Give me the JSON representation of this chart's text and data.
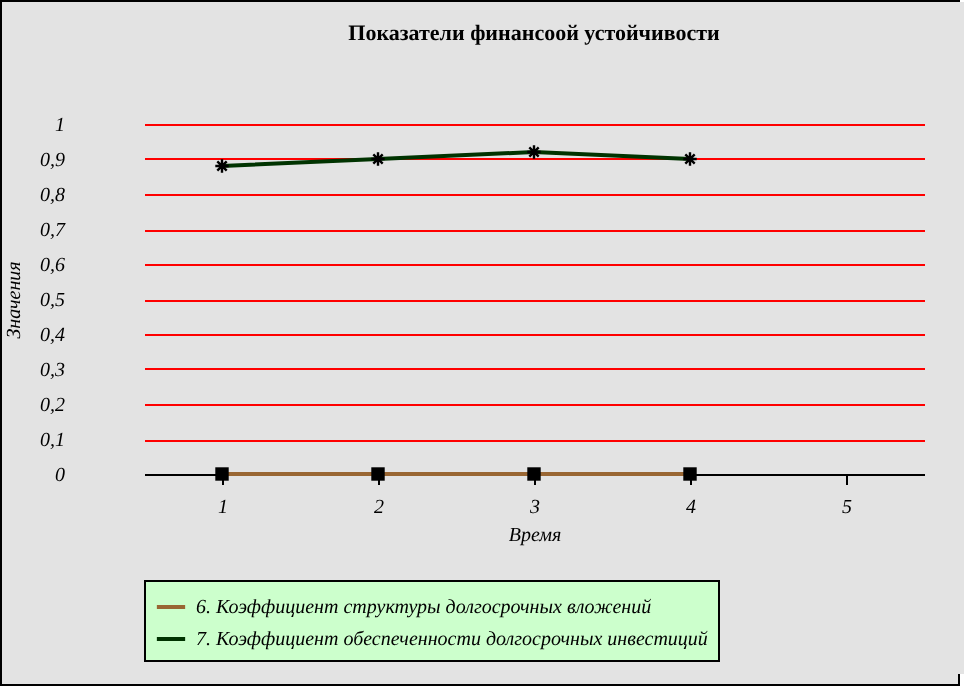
{
  "chart_data": {
    "type": "line",
    "title": "Показатели финансоой устойчивости",
    "xlabel": "Время",
    "ylabel": "Значения",
    "categories": [
      "1",
      "2",
      "3",
      "4",
      "5"
    ],
    "series": [
      {
        "name": "6. Коэффициент структуры долгосрочных вложений",
        "color": "#996633",
        "marker": "square",
        "values": [
          0,
          0,
          0,
          0,
          null
        ]
      },
      {
        "name": "7. Коэффициент обеспеченности долгосрочных инвестиций",
        "color": "#003300",
        "marker": "cross",
        "values": [
          0.88,
          0.9,
          0.92,
          0.9,
          null
        ]
      }
    ],
    "ylim": [
      0,
      1
    ],
    "yticks": [
      0,
      {
        "value": 0.1,
        "label": "0,1"
      },
      {
        "value": 0.2,
        "label": "0,2"
      },
      {
        "value": 0.3,
        "label": "0,3"
      },
      {
        "value": 0.4,
        "label": "0,4"
      },
      {
        "value": 0.5,
        "label": "0,5"
      },
      {
        "value": 0.6,
        "label": "0,6"
      },
      {
        "value": 0.7,
        "label": "0,7"
      },
      {
        "value": 0.8,
        "label": "0,8"
      },
      {
        "value": 0.9,
        "label": "0,9"
      },
      1
    ],
    "grid": "y",
    "legend": "bottom"
  }
}
